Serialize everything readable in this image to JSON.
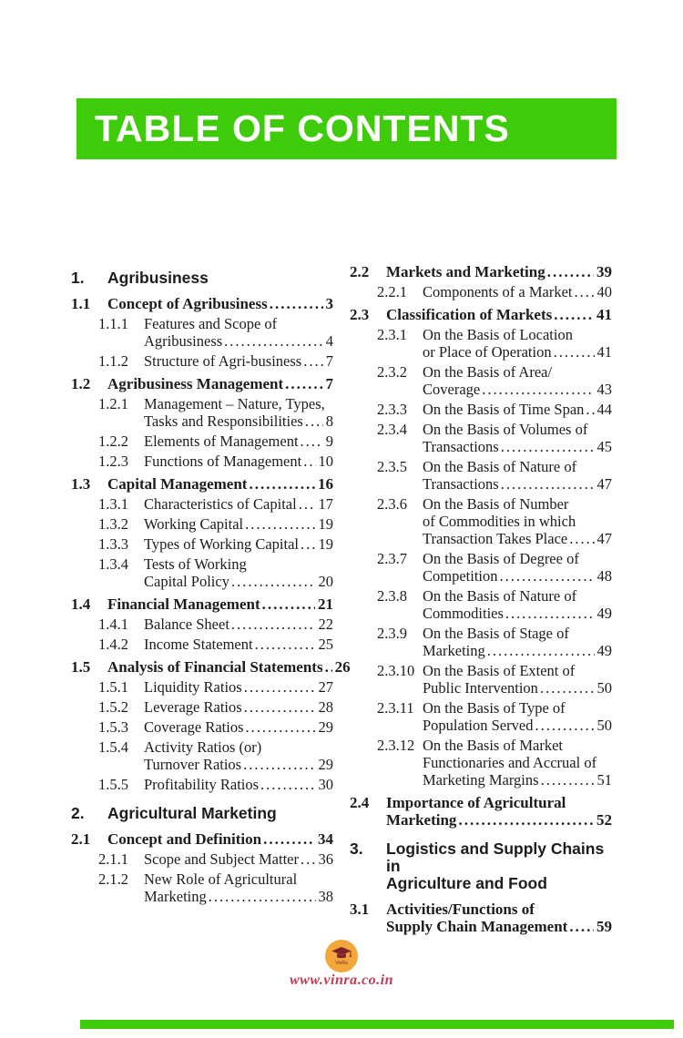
{
  "header": {
    "title": "TABLE OF CONTENTS"
  },
  "footer": {
    "website": "www.vinra.co.in",
    "logo_text": "VinRa"
  },
  "colors": {
    "green": "#3ECB0A",
    "amber": "#F2A73B",
    "maroon": "#7E2230",
    "crimson": "#C23B53",
    "text": "#1C1C1C"
  },
  "columns": [
    [
      {
        "type": "chapter",
        "num": "1.",
        "lines": [
          "Agribusiness"
        ]
      },
      {
        "type": "section",
        "num": "1.1",
        "lines": [
          "Concept of Agribusiness"
        ],
        "page": "3"
      },
      {
        "type": "sub",
        "num": "1.1.1",
        "lines": [
          "Features and Scope of",
          "Agribusiness"
        ],
        "page": "4"
      },
      {
        "type": "sub",
        "num": "1.1.2",
        "lines": [
          "Structure of Agri-business"
        ],
        "page": "7"
      },
      {
        "type": "section",
        "num": "1.2",
        "lines": [
          "Agribusiness Management"
        ],
        "page": "7"
      },
      {
        "type": "sub",
        "num": "1.2.1",
        "lines": [
          "Management – Nature, Types,",
          "Tasks and Responsibilities"
        ],
        "page": "8"
      },
      {
        "type": "sub",
        "num": "1.2.2",
        "lines": [
          "Elements of Management"
        ],
        "page": "9"
      },
      {
        "type": "sub",
        "num": "1.2.3",
        "lines": [
          "Functions of Management"
        ],
        "page": "10"
      },
      {
        "type": "section",
        "num": "1.3",
        "lines": [
          "Capital Management"
        ],
        "page": "16"
      },
      {
        "type": "sub",
        "num": "1.3.1",
        "lines": [
          "Characteristics of Capital"
        ],
        "page": "17"
      },
      {
        "type": "sub",
        "num": "1.3.2",
        "lines": [
          "Working Capital"
        ],
        "page": "19"
      },
      {
        "type": "sub",
        "num": "1.3.3",
        "lines": [
          "Types of Working Capital"
        ],
        "page": "19"
      },
      {
        "type": "sub",
        "num": "1.3.4",
        "lines": [
          "Tests of Working",
          "Capital Policy"
        ],
        "page": "20"
      },
      {
        "type": "section",
        "num": "1.4",
        "lines": [
          "Financial Management"
        ],
        "page": "21"
      },
      {
        "type": "sub",
        "num": "1.4.1",
        "lines": [
          "Balance Sheet"
        ],
        "page": "22"
      },
      {
        "type": "sub",
        "num": "1.4.2",
        "lines": [
          "Income Statement"
        ],
        "page": "25"
      },
      {
        "type": "section",
        "num": "1.5",
        "lines": [
          "Analysis of Financial Statements"
        ],
        "page": "26"
      },
      {
        "type": "sub",
        "num": "1.5.1",
        "lines": [
          "Liquidity Ratios"
        ],
        "page": "27"
      },
      {
        "type": "sub",
        "num": "1.5.2",
        "lines": [
          "Leverage Ratios"
        ],
        "page": "28"
      },
      {
        "type": "sub",
        "num": "1.5.3",
        "lines": [
          "Coverage Ratios"
        ],
        "page": "29"
      },
      {
        "type": "sub",
        "num": "1.5.4",
        "lines": [
          "Activity Ratios (or)",
          "Turnover Ratios"
        ],
        "page": "29"
      },
      {
        "type": "sub",
        "num": "1.5.5",
        "lines": [
          "Profitability Ratios"
        ],
        "page": "30"
      },
      {
        "type": "chapter",
        "num": "2.",
        "lines": [
          "Agricultural Marketing"
        ]
      },
      {
        "type": "section",
        "num": "2.1",
        "lines": [
          "Concept and Definition"
        ],
        "page": "34"
      },
      {
        "type": "sub",
        "num": "2.1.1",
        "lines": [
          "Scope and Subject Matter"
        ],
        "page": "36"
      },
      {
        "type": "sub",
        "num": "2.1.2",
        "lines": [
          "New Role of Agricultural",
          "Marketing"
        ],
        "page": "38"
      }
    ],
    [
      {
        "type": "section",
        "num": "2.2",
        "lines": [
          "Markets and Marketing"
        ],
        "page": "39"
      },
      {
        "type": "sub",
        "num": "2.2.1",
        "lines": [
          "Components of a Market"
        ],
        "page": "40"
      },
      {
        "type": "section",
        "num": "2.3",
        "lines": [
          "Classification of Markets"
        ],
        "page": "41"
      },
      {
        "type": "sub",
        "num": "2.3.1",
        "lines": [
          "On the Basis of Location",
          "or Place of Operation"
        ],
        "page": "41"
      },
      {
        "type": "sub",
        "num": "2.3.2",
        "lines": [
          "On the Basis of Area/",
          "Coverage"
        ],
        "page": "43"
      },
      {
        "type": "sub",
        "num": "2.3.3",
        "lines": [
          "On the Basis of Time Span"
        ],
        "page": "44"
      },
      {
        "type": "sub",
        "num": "2.3.4",
        "lines": [
          "On the Basis of Volumes of",
          "Transactions"
        ],
        "page": "45"
      },
      {
        "type": "sub",
        "num": "2.3.5",
        "lines": [
          "On the Basis of Nature of",
          "Transactions"
        ],
        "page": "47"
      },
      {
        "type": "sub",
        "num": "2.3.6",
        "lines": [
          "On the Basis of Number",
          "of Commodities in which",
          "Transaction Takes Place"
        ],
        "page": "47"
      },
      {
        "type": "sub",
        "num": "2.3.7",
        "lines": [
          "On the Basis of Degree of",
          "Competition"
        ],
        "page": "48"
      },
      {
        "type": "sub",
        "num": "2.3.8",
        "lines": [
          "On the Basis of Nature of",
          "Commodities"
        ],
        "page": "49"
      },
      {
        "type": "sub",
        "num": "2.3.9",
        "lines": [
          "On the Basis of Stage of",
          "Marketing"
        ],
        "page": "49"
      },
      {
        "type": "sub",
        "num": "2.3.10",
        "lines": [
          "On the Basis of Extent of",
          "Public Intervention"
        ],
        "page": "50"
      },
      {
        "type": "sub",
        "num": "2.3.11",
        "lines": [
          "On the Basis of Type of",
          "Population Served"
        ],
        "page": "50"
      },
      {
        "type": "sub",
        "num": "2.3.12",
        "lines": [
          "On the Basis of Market",
          "Functionaries and Accrual of",
          "Marketing Margins"
        ],
        "page": "51"
      },
      {
        "type": "section",
        "num": "2.4",
        "lines": [
          "Importance of Agricultural",
          "Marketing"
        ],
        "page": "52"
      },
      {
        "type": "chapter",
        "num": "3.",
        "lines": [
          "Logistics and Supply Chains in",
          "Agriculture and Food"
        ]
      },
      {
        "type": "section",
        "num": "3.1",
        "lines": [
          "Activities/Functions of",
          "Supply Chain Management"
        ],
        "page": "59"
      }
    ]
  ]
}
